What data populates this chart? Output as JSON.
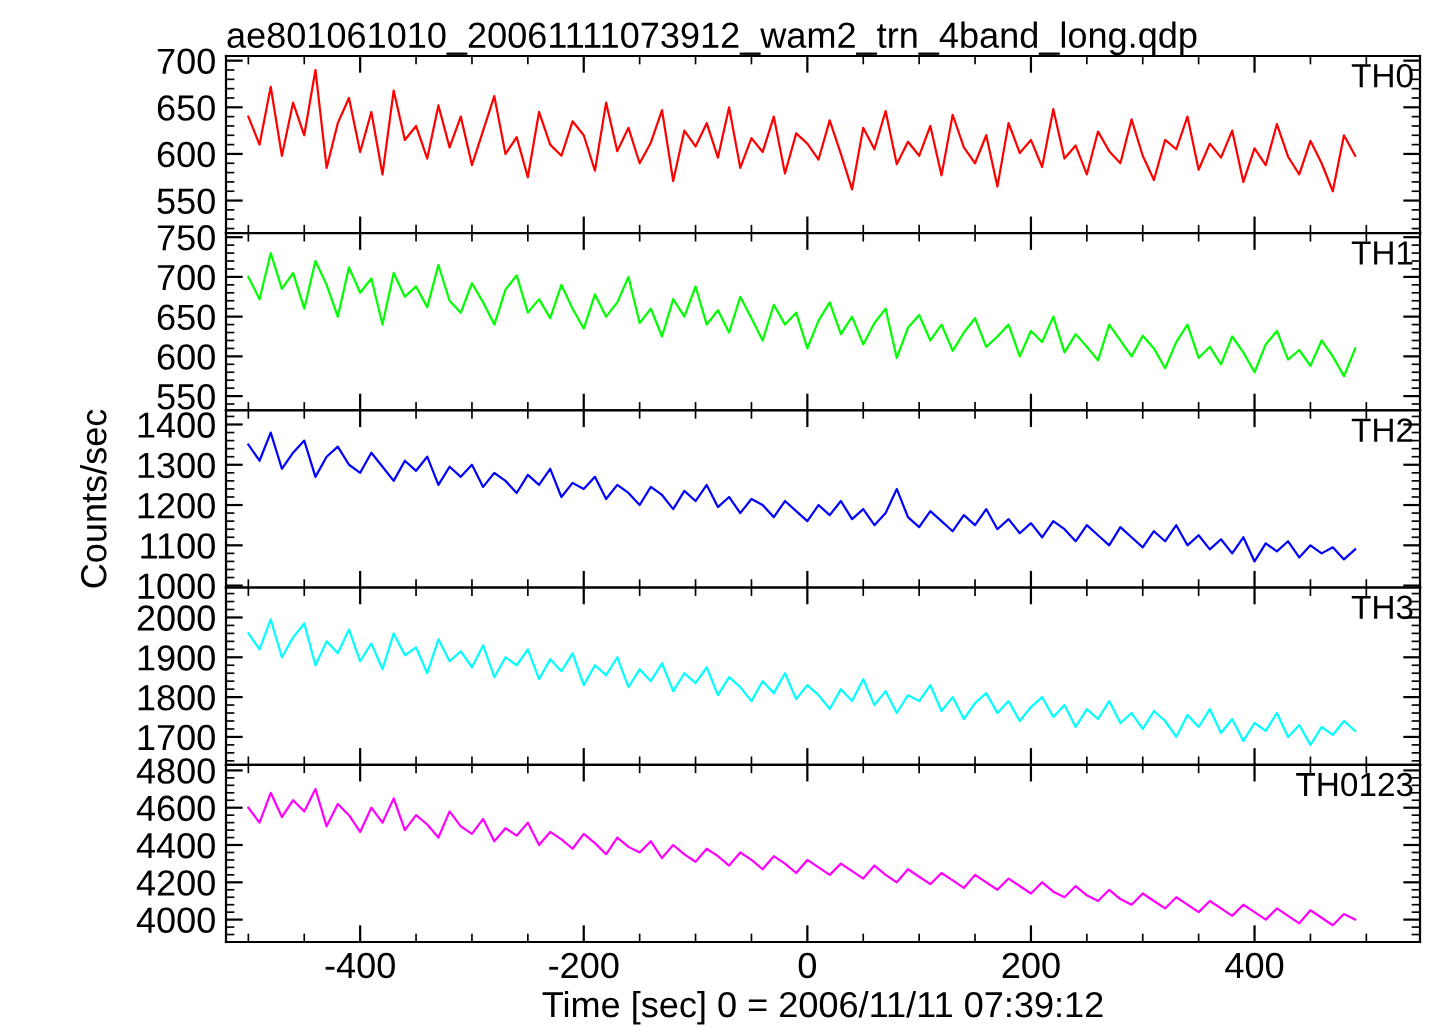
{
  "chart_data": [
    {
      "type": "line",
      "title": "ae801061010_20061111073912_wam2_trn_4band_long.qdp",
      "x": [
        -500,
        -490,
        -480,
        -470,
        -460,
        -450,
        -440,
        -430,
        -420,
        -410,
        -400,
        -390,
        -380,
        -370,
        -360,
        -350,
        -340,
        -330,
        -320,
        -310,
        -300,
        -290,
        -280,
        -270,
        -260,
        -250,
        -240,
        -230,
        -220,
        -210,
        -200,
        -190,
        -180,
        -170,
        -160,
        -150,
        -140,
        -130,
        -120,
        -110,
        -100,
        -90,
        -80,
        -70,
        -60,
        -50,
        -40,
        -30,
        -20,
        -10,
        0,
        10,
        20,
        30,
        40,
        50,
        60,
        70,
        80,
        90,
        100,
        110,
        120,
        130,
        140,
        150,
        160,
        170,
        180,
        190,
        200,
        210,
        220,
        230,
        240,
        250,
        260,
        270,
        280,
        290,
        300,
        310,
        320,
        330,
        340,
        350,
        360,
        370,
        380,
        390,
        400,
        410,
        420,
        430,
        440,
        450,
        460,
        470,
        480,
        490
      ],
      "xlim": [
        -520,
        548
      ],
      "xticks": [
        -400,
        -200,
        0,
        200,
        400
      ],
      "ylim": [
        515,
        705
      ],
      "yticks": [
        550,
        600,
        650,
        700
      ],
      "tick_labels": "y",
      "series": [
        {
          "name": "TH0",
          "color": "#ff0000",
          "values": [
            640,
            610,
            672,
            598,
            655,
            620,
            690,
            585,
            633,
            660,
            602,
            645,
            578,
            668,
            615,
            630,
            595,
            652,
            607,
            640,
            588,
            625,
            662,
            600,
            618,
            575,
            645,
            610,
            598,
            635,
            620,
            582,
            655,
            603,
            628,
            590,
            612,
            647,
            571,
            625,
            608,
            633,
            596,
            650,
            585,
            617,
            602,
            640,
            579,
            622,
            611,
            594,
            636,
            600,
            562,
            628,
            605,
            646,
            589,
            613,
            598,
            630,
            577,
            642,
            607,
            590,
            620,
            565,
            633,
            601,
            615,
            586,
            648,
            595,
            609,
            578,
            624,
            603,
            590,
            637,
            598,
            572,
            615,
            605,
            640,
            583,
            611,
            596,
            625,
            570,
            606,
            588,
            632,
            597,
            578,
            614,
            590,
            560,
            620,
            598
          ]
        }
      ]
    },
    {
      "type": "line",
      "x": [
        -500,
        -490,
        -480,
        -470,
        -460,
        -450,
        -440,
        -430,
        -420,
        -410,
        -400,
        -390,
        -380,
        -370,
        -360,
        -350,
        -340,
        -330,
        -320,
        -310,
        -300,
        -290,
        -280,
        -270,
        -260,
        -250,
        -240,
        -230,
        -220,
        -210,
        -200,
        -190,
        -180,
        -170,
        -160,
        -150,
        -140,
        -130,
        -120,
        -110,
        -100,
        -90,
        -80,
        -70,
        -60,
        -50,
        -40,
        -30,
        -20,
        -10,
        0,
        10,
        20,
        30,
        40,
        50,
        60,
        70,
        80,
        90,
        100,
        110,
        120,
        130,
        140,
        150,
        160,
        170,
        180,
        190,
        200,
        210,
        220,
        230,
        240,
        250,
        260,
        270,
        280,
        290,
        300,
        310,
        320,
        330,
        340,
        350,
        360,
        370,
        380,
        390,
        400,
        410,
        420,
        430,
        440,
        450,
        460,
        470,
        480,
        490
      ],
      "xlim": [
        -520,
        548
      ],
      "xticks": [
        -400,
        -200,
        0,
        200,
        400
      ],
      "ylim": [
        532,
        755
      ],
      "yticks": [
        550,
        600,
        650,
        700,
        750
      ],
      "tick_labels": "y",
      "series": [
        {
          "name": "TH1",
          "color": "#00ff00",
          "values": [
            700,
            672,
            730,
            685,
            705,
            660,
            720,
            690,
            650,
            712,
            680,
            698,
            640,
            705,
            675,
            688,
            662,
            715,
            670,
            655,
            692,
            668,
            640,
            684,
            702,
            655,
            672,
            648,
            690,
            660,
            635,
            678,
            650,
            668,
            700,
            642,
            660,
            625,
            672,
            650,
            688,
            640,
            658,
            630,
            675,
            648,
            620,
            665,
            640,
            655,
            610,
            645,
            668,
            628,
            650,
            615,
            642,
            660,
            598,
            636,
            652,
            620,
            640,
            607,
            630,
            648,
            612,
            625,
            640,
            600,
            632,
            618,
            650,
            605,
            628,
            612,
            595,
            640,
            620,
            600,
            626,
            610,
            585,
            618,
            640,
            598,
            612,
            590,
            625,
            605,
            580,
            615,
            632,
            596,
            608,
            588,
            620,
            600,
            575,
            610
          ]
        }
      ]
    },
    {
      "type": "line",
      "ylabel": "Counts/sec",
      "x": [
        -500,
        -490,
        -480,
        -470,
        -460,
        -450,
        -440,
        -430,
        -420,
        -410,
        -400,
        -390,
        -380,
        -370,
        -360,
        -350,
        -340,
        -330,
        -320,
        -310,
        -300,
        -290,
        -280,
        -270,
        -260,
        -250,
        -240,
        -230,
        -220,
        -210,
        -200,
        -190,
        -180,
        -170,
        -160,
        -150,
        -140,
        -130,
        -120,
        -110,
        -100,
        -90,
        -80,
        -70,
        -60,
        -50,
        -40,
        -30,
        -20,
        -10,
        0,
        10,
        20,
        30,
        40,
        50,
        60,
        70,
        80,
        90,
        100,
        110,
        120,
        130,
        140,
        150,
        160,
        170,
        180,
        190,
        200,
        210,
        220,
        230,
        240,
        250,
        260,
        270,
        280,
        290,
        300,
        310,
        320,
        330,
        340,
        350,
        360,
        370,
        380,
        390,
        400,
        410,
        420,
        430,
        440,
        450,
        460,
        470,
        480,
        490
      ],
      "xlim": [
        -520,
        548
      ],
      "xticks": [
        -400,
        -200,
        0,
        200,
        400
      ],
      "ylim": [
        995,
        1435
      ],
      "yticks": [
        1000,
        1100,
        1200,
        1300,
        1400
      ],
      "tick_labels": "y",
      "series": [
        {
          "name": "TH2",
          "color": "#0000ff",
          "values": [
            1350,
            1310,
            1380,
            1290,
            1330,
            1360,
            1270,
            1320,
            1345,
            1300,
            1280,
            1330,
            1295,
            1260,
            1310,
            1285,
            1320,
            1250,
            1295,
            1270,
            1300,
            1245,
            1280,
            1260,
            1230,
            1275,
            1250,
            1290,
            1220,
            1255,
            1240,
            1270,
            1215,
            1250,
            1230,
            1200,
            1245,
            1225,
            1190,
            1235,
            1210,
            1250,
            1195,
            1220,
            1180,
            1215,
            1200,
            1170,
            1210,
            1185,
            1160,
            1200,
            1175,
            1210,
            1165,
            1190,
            1150,
            1180,
            1240,
            1170,
            1145,
            1185,
            1160,
            1135,
            1175,
            1150,
            1190,
            1140,
            1165,
            1130,
            1155,
            1120,
            1160,
            1140,
            1110,
            1150,
            1125,
            1100,
            1145,
            1120,
            1095,
            1135,
            1110,
            1150,
            1100,
            1125,
            1090,
            1115,
            1080,
            1120,
            1060,
            1105,
            1085,
            1110,
            1070,
            1100,
            1080,
            1095,
            1065,
            1090
          ]
        }
      ]
    },
    {
      "type": "line",
      "x": [
        -500,
        -490,
        -480,
        -470,
        -460,
        -450,
        -440,
        -430,
        -420,
        -410,
        -400,
        -390,
        -380,
        -370,
        -360,
        -350,
        -340,
        -330,
        -320,
        -310,
        -300,
        -290,
        -280,
        -270,
        -260,
        -250,
        -240,
        -230,
        -220,
        -210,
        -200,
        -190,
        -180,
        -170,
        -160,
        -150,
        -140,
        -130,
        -120,
        -110,
        -100,
        -90,
        -80,
        -70,
        -60,
        -50,
        -40,
        -30,
        -20,
        -10,
        0,
        10,
        20,
        30,
        40,
        50,
        60,
        70,
        80,
        90,
        100,
        110,
        120,
        130,
        140,
        150,
        160,
        170,
        180,
        190,
        200,
        210,
        220,
        230,
        240,
        250,
        260,
        270,
        280,
        290,
        300,
        310,
        320,
        330,
        340,
        350,
        360,
        370,
        380,
        390,
        400,
        410,
        420,
        430,
        440,
        450,
        460,
        470,
        480,
        490
      ],
      "xlim": [
        -520,
        548
      ],
      "xticks": [
        -400,
        -200,
        0,
        200,
        400
      ],
      "ylim": [
        1630,
        2075
      ],
      "yticks": [
        1700,
        1800,
        1900,
        2000
      ],
      "tick_labels": "y",
      "series": [
        {
          "name": "TH3",
          "color": "#00ffff",
          "values": [
            1960,
            1920,
            1995,
            1900,
            1950,
            1985,
            1880,
            1940,
            1910,
            1970,
            1890,
            1935,
            1870,
            1960,
            1905,
            1925,
            1860,
            1945,
            1890,
            1915,
            1875,
            1930,
            1850,
            1900,
            1880,
            1920,
            1845,
            1895,
            1865,
            1910,
            1830,
            1880,
            1855,
            1900,
            1825,
            1870,
            1840,
            1885,
            1815,
            1860,
            1835,
            1875,
            1805,
            1850,
            1825,
            1790,
            1840,
            1810,
            1860,
            1795,
            1830,
            1805,
            1770,
            1820,
            1790,
            1845,
            1780,
            1815,
            1760,
            1805,
            1790,
            1830,
            1765,
            1800,
            1745,
            1785,
            1810,
            1760,
            1790,
            1740,
            1775,
            1800,
            1750,
            1780,
            1725,
            1770,
            1745,
            1790,
            1735,
            1760,
            1720,
            1765,
            1740,
            1700,
            1755,
            1725,
            1770,
            1710,
            1745,
            1690,
            1735,
            1715,
            1760,
            1700,
            1730,
            1680,
            1725,
            1705,
            1740,
            1715
          ]
        }
      ]
    },
    {
      "type": "line",
      "xlabel": "Time [sec] 0 = 2006/11/11 07:39:12",
      "x": [
        -500,
        -490,
        -480,
        -470,
        -460,
        -450,
        -440,
        -430,
        -420,
        -410,
        -400,
        -390,
        -380,
        -370,
        -360,
        -350,
        -340,
        -330,
        -320,
        -310,
        -300,
        -290,
        -280,
        -270,
        -260,
        -250,
        -240,
        -230,
        -220,
        -210,
        -200,
        -190,
        -180,
        -170,
        -160,
        -150,
        -140,
        -130,
        -120,
        -110,
        -100,
        -90,
        -80,
        -70,
        -60,
        -50,
        -40,
        -30,
        -20,
        -10,
        0,
        10,
        20,
        30,
        40,
        50,
        60,
        70,
        80,
        90,
        100,
        110,
        120,
        130,
        140,
        150,
        160,
        170,
        180,
        190,
        200,
        210,
        220,
        230,
        240,
        250,
        260,
        270,
        280,
        290,
        300,
        310,
        320,
        330,
        340,
        350,
        360,
        370,
        380,
        390,
        400,
        410,
        420,
        430,
        440,
        450,
        460,
        470,
        480,
        490
      ],
      "xlim": [
        -520,
        548
      ],
      "xticks": [
        -400,
        -200,
        0,
        200,
        400
      ],
      "ylim": [
        3880,
        4830
      ],
      "yticks": [
        4000,
        4200,
        4400,
        4600,
        4800
      ],
      "series": [
        {
          "name": "TH0123",
          "color": "#ff00ff",
          "values": [
            4600,
            4520,
            4680,
            4550,
            4640,
            4580,
            4700,
            4500,
            4620,
            4560,
            4470,
            4600,
            4520,
            4650,
            4480,
            4560,
            4510,
            4440,
            4580,
            4500,
            4460,
            4540,
            4420,
            4490,
            4450,
            4520,
            4400,
            4470,
            4430,
            4380,
            4460,
            4410,
            4350,
            4440,
            4390,
            4360,
            4420,
            4330,
            4400,
            4350,
            4310,
            4380,
            4340,
            4290,
            4360,
            4320,
            4270,
            4340,
            4300,
            4250,
            4320,
            4280,
            4240,
            4300,
            4260,
            4220,
            4290,
            4240,
            4200,
            4270,
            4230,
            4190,
            4250,
            4210,
            4170,
            4240,
            4200,
            4160,
            4220,
            4180,
            4140,
            4200,
            4150,
            4120,
            4180,
            4130,
            4100,
            4160,
            4110,
            4080,
            4140,
            4100,
            4060,
            4120,
            4080,
            4040,
            4100,
            4060,
            4020,
            4080,
            4040,
            4000,
            4060,
            4020,
            3980,
            4050,
            4010,
            3970,
            4030,
            4000
          ]
        }
      ]
    }
  ]
}
